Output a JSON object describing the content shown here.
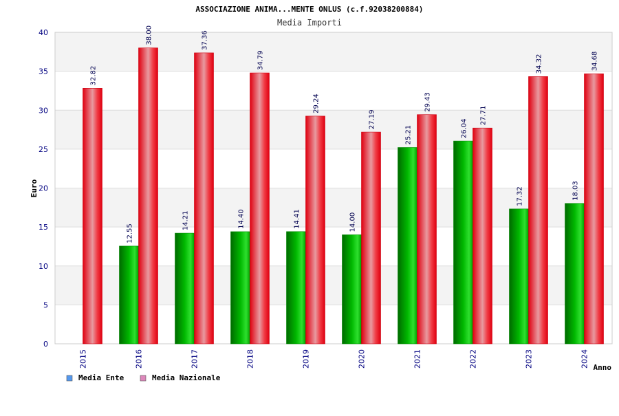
{
  "chart_data": {
    "type": "bar",
    "title": "ASSOCIAZIONE ANIMA...MENTE ONLUS (c.f.92038200884)",
    "subtitle": "Media Importi",
    "xlabel": "Anno",
    "ylabel": "Euro",
    "ylim": [
      0,
      40
    ],
    "yticks": [
      0,
      5,
      10,
      15,
      20,
      25,
      30,
      35,
      40
    ],
    "grid": true,
    "legend_position": "bottom-left",
    "categories": [
      "2015",
      "2016",
      "2017",
      "2018",
      "2019",
      "2020",
      "2021",
      "2022",
      "2023",
      "2024"
    ],
    "series": [
      {
        "name": "Media Ente",
        "color": "#00c000",
        "legend_color": "#5599ee",
        "values": [
          null,
          12.55,
          14.21,
          14.4,
          14.41,
          14.0,
          25.21,
          26.04,
          17.32,
          18.03
        ],
        "labels": [
          "",
          "12.55",
          "14.21",
          "14.40",
          "14.41",
          "14.00",
          "25.21",
          "26.04",
          "17.32",
          "18.03"
        ]
      },
      {
        "name": "Media Nazionale",
        "color": "#ee1122",
        "legend_color": "#dd88bb",
        "values": [
          32.82,
          38.0,
          37.36,
          34.79,
          29.24,
          27.19,
          29.43,
          27.71,
          34.32,
          34.68
        ],
        "labels": [
          "32.82",
          "38.00",
          "37.36",
          "34.79",
          "29.24",
          "27.19",
          "29.43",
          "27.71",
          "34.32",
          "34.68"
        ]
      }
    ]
  }
}
